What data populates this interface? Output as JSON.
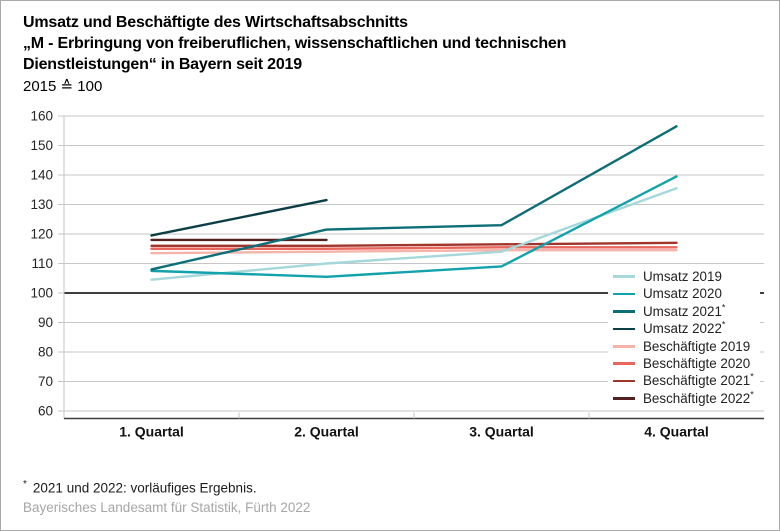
{
  "figure": {
    "title_lines": [
      "Umsatz und Beschäftigte des Wirtschaftsabschnitts",
      "„M - Erbringung von freiberuflichen, wissenschaftlichen und technischen",
      "Dienstleistungen“ in Bayern seit 2019"
    ],
    "subtitle": "2015 ≙ 100",
    "footnote_marker": "*",
    "footnote_text": "2021 und 2022: vorläufiges Ergebnis.",
    "source": "Bayerisches Landesamt für Statistik, Fürth 2022"
  },
  "chart_data": {
    "type": "line",
    "categories": [
      "1. Quartal",
      "2. Quartal",
      "3. Quartal",
      "4. Quartal"
    ],
    "series": [
      {
        "name": "Umsatz 2019",
        "color": "#a5d8db",
        "values": [
          104.5,
          110,
          114,
          135.5
        ]
      },
      {
        "name": "Umsatz 2020",
        "color": "#12a2ab",
        "values": [
          107.5,
          105.5,
          109,
          139.5
        ]
      },
      {
        "name": "Umsatz 2021*",
        "color": "#0e6e78",
        "values": [
          108,
          121.5,
          123,
          156.5
        ]
      },
      {
        "name": "Umsatz 2022*",
        "color": "#0b3e45",
        "values": [
          119.5,
          131.5,
          null,
          null
        ]
      },
      {
        "name": "Beschäftigte 2019",
        "color": "#f6b3aa",
        "values": [
          113.5,
          114,
          114.5,
          114.5
        ]
      },
      {
        "name": "Beschäftigte 2020",
        "color": "#e8665c",
        "values": [
          115,
          115,
          115.5,
          115.5
        ]
      },
      {
        "name": "Beschäftigte 2021*",
        "color": "#a0352c",
        "values": [
          116,
          116,
          116.5,
          117
        ]
      },
      {
        "name": "Beschäftigte 2022*",
        "color": "#532220",
        "values": [
          118,
          118,
          null,
          null
        ]
      }
    ],
    "draw_order": [
      4,
      5,
      6,
      7,
      0,
      1,
      2,
      3
    ],
    "ylim": [
      60,
      160
    ],
    "yticks": [
      160,
      150,
      140,
      130,
      120,
      110,
      100,
      90,
      80,
      70,
      60
    ],
    "baseline_value": 100,
    "grid": true,
    "legend_position": "inside-right",
    "title": "Umsatz und Beschäftigte des Wirtschaftsabschnitts „M - Erbringung von freiberuflichen, wissenschaftlichen und technischen Dienstleistungen“ in Bayern seit 2019",
    "xlabel": "",
    "ylabel": "2015 ≙ 100",
    "colors": {
      "grid": "#c6c6c6",
      "baseline": "#3d3d3d",
      "axis": "#3d3d3d"
    }
  }
}
